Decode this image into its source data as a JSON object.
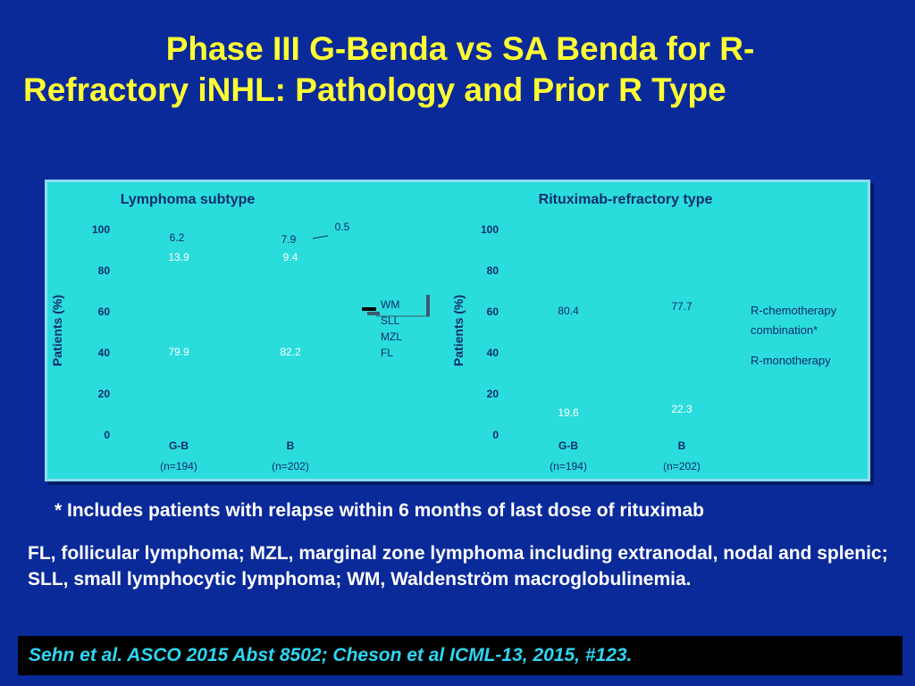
{
  "slide": {
    "title_line1": "Phase III G-Benda vs SA Benda for R-",
    "title_line2": "Refractory iNHL: Pathology and Prior R Type",
    "footnote": "* Includes patients with relapse within 6 months of last dose of rituximab",
    "abbreviations": "FL, follicular lymphoma; MZL, marginal zone lymphoma including extranodal, nodal and splenic; SLL, small lymphocytic lymphoma; WM, Waldenström macroglobulinemia.",
    "citation": "Sehn et al. ASCO 2015 Abst 8502; Cheson et al ICML-13, 2015, #123."
  },
  "chart_data": [
    {
      "type": "bar",
      "stacked": true,
      "title": "Lymphoma subtype",
      "ylabel": "Patients (%)",
      "ylim": [
        0,
        100
      ],
      "yticks": [
        "0",
        "20",
        "40",
        "60",
        "80",
        "100"
      ],
      "categories": [
        "G-B",
        "B"
      ],
      "category_sublabels": [
        "(n=194)",
        "(n=202)"
      ],
      "series": [
        {
          "name": "FL",
          "values": [
            79.9,
            82.2
          ],
          "labels": [
            "79.9",
            "82.2"
          ]
        },
        {
          "name": "MZL",
          "values": [
            13.9,
            9.4
          ],
          "labels": [
            "13.9",
            "9.4"
          ]
        },
        {
          "name": "SLL",
          "values": [
            6.2,
            7.9
          ],
          "labels": [
            "6.2",
            "7.9"
          ]
        },
        {
          "name": "WM",
          "values": [
            null,
            0.5
          ],
          "labels": [
            "",
            "0.5"
          ]
        }
      ],
      "legend": [
        "WM",
        "SLL",
        "MZL",
        "FL"
      ],
      "legend_position": "right"
    },
    {
      "type": "bar",
      "stacked": true,
      "title": "Rituximab-refractory type",
      "ylabel": "Patients (%)",
      "ylim": [
        0,
        100
      ],
      "yticks": [
        "0",
        "20",
        "40",
        "60",
        "80",
        "100"
      ],
      "categories": [
        "G-B",
        "B"
      ],
      "category_sublabels": [
        "(n=194)",
        "(n=202)"
      ],
      "series": [
        {
          "name": "R-monotherapy",
          "values": [
            19.6,
            22.3
          ],
          "labels": [
            "19.6",
            "22.3"
          ]
        },
        {
          "name": "R-chemotherapy combination*",
          "values": [
            80.4,
            77.7
          ],
          "labels": [
            "80.4",
            "77.7"
          ]
        }
      ],
      "legend": [
        "R-chemotherapy",
        "combination*",
        "R-monotherapy"
      ],
      "legend_position": "right"
    }
  ],
  "colors": {
    "background": "#0a2a9a",
    "title": "#ffff33",
    "panel": "#2bdcdc",
    "panel_border": "#8fdcf2",
    "chart_text": "#0f2d6b",
    "label_light": "#ffffff",
    "citation_text": "#2fd5f2"
  }
}
